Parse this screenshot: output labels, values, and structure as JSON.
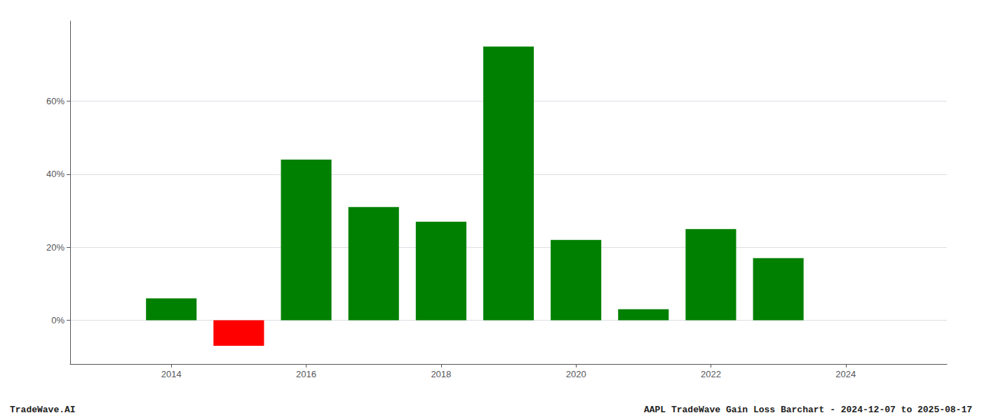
{
  "chart_data": {
    "type": "bar",
    "x": [
      2014,
      2015,
      2016,
      2017,
      2018,
      2019,
      2020,
      2021,
      2022,
      2023
    ],
    "values": [
      0.06,
      -0.07,
      0.44,
      0.31,
      0.27,
      0.75,
      0.22,
      0.03,
      0.25,
      0.17
    ],
    "colors": [
      "#008000",
      "#ff0000",
      "#008000",
      "#008000",
      "#008000",
      "#008000",
      "#008000",
      "#008000",
      "#008000",
      "#008000"
    ],
    "xlim": [
      2012.5,
      2025.5
    ],
    "xticks": [
      2014,
      2016,
      2018,
      2020,
      2022,
      2024
    ],
    "ylim": [
      -0.12,
      0.82
    ],
    "yticks": [
      {
        "value": 0.0,
        "label": "0%"
      },
      {
        "value": 0.2,
        "label": "20%"
      },
      {
        "value": 0.4,
        "label": "40%"
      },
      {
        "value": 0.6,
        "label": "60%"
      }
    ],
    "grid": true,
    "annotations": [
      "TradeWave.AI",
      "AAPL TradeWave Gain Loss Barchart - 2024-12-07 to 2025-08-17"
    ]
  }
}
